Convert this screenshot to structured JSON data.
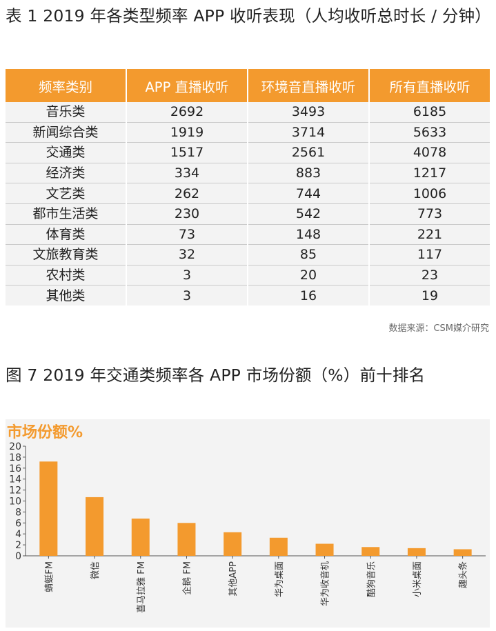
{
  "table1": {
    "title": "表 1 2019 年各类型频率 APP 收听表现（人均收听总时长 / 分钟）",
    "headers": [
      "频率类别",
      "APP 直播收听",
      "环境音直播收听",
      "所有直播收听"
    ],
    "rows": [
      [
        "音乐类",
        "2692",
        "3493",
        "6185"
      ],
      [
        "新闻综合类",
        "1919",
        "3714",
        "5633"
      ],
      [
        "交通类",
        "1517",
        "2561",
        "4078"
      ],
      [
        "经济类",
        "334",
        "883",
        "1217"
      ],
      [
        "文艺类",
        "262",
        "744",
        "1006"
      ],
      [
        "都市生活类",
        "230",
        "542",
        "773"
      ],
      [
        "体育类",
        "73",
        "148",
        "221"
      ],
      [
        "文旅教育类",
        "32",
        "85",
        "117"
      ],
      [
        "农村类",
        "3",
        "20",
        "23"
      ],
      [
        "其他类",
        "3",
        "16",
        "19"
      ]
    ],
    "source": "数据来源：CSM媒介研究"
  },
  "figure7": {
    "title": "图 7 2019 年交通类频率各 APP 市场份额（%）前十排名"
  },
  "chart_data": {
    "type": "bar",
    "title": "市场份额%",
    "categories": [
      "蜻蜓FM",
      "微信",
      "喜马拉雅 FM",
      "企鹅 FM",
      "其他APP",
      "华为桌面",
      "华为收音机",
      "酷狗音乐",
      "小米桌面",
      "趣头条"
    ],
    "values": [
      17.2,
      10.7,
      6.8,
      6.0,
      4.3,
      3.3,
      2.2,
      1.6,
      1.4,
      1.2
    ],
    "ylim": [
      0,
      20
    ],
    "yticks": [
      0,
      2,
      4,
      6,
      8,
      10,
      12,
      14,
      16,
      18,
      20
    ],
    "grid": false,
    "bar_color": "#f39a2e",
    "title_color": "#f39a2e",
    "background": "#f3f3f3"
  }
}
